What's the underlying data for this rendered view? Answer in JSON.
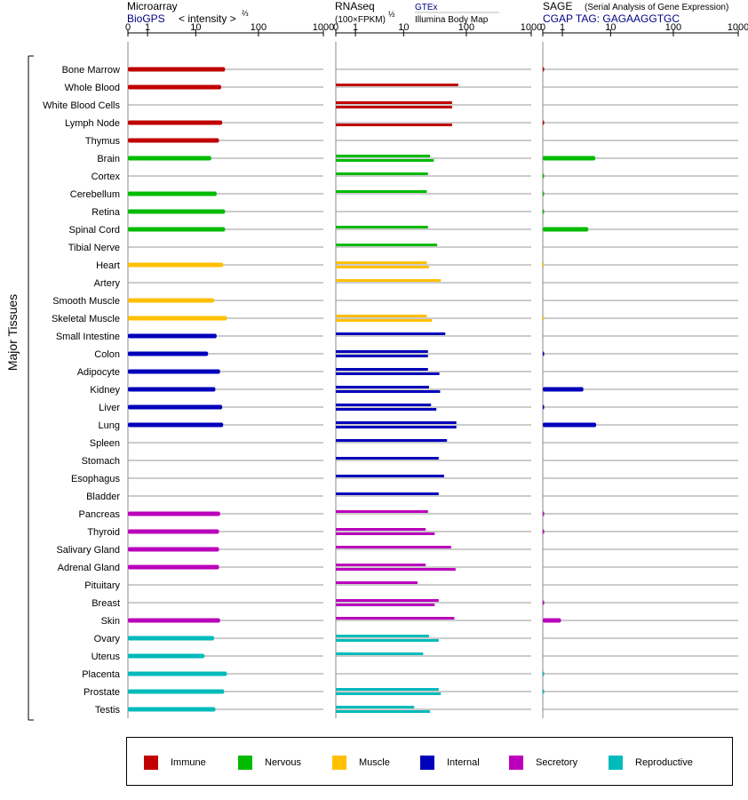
{
  "chart_data": {
    "type": "bar",
    "orientation": "horizontal",
    "axis_title": "Major Tissues",
    "tissues": [
      "Bone Marrow",
      "Whole Blood",
      "White Blood Cells",
      "Lymph Node",
      "Thymus",
      "Brain",
      "Cortex",
      "Cerebellum",
      "Retina",
      "Spinal Cord",
      "Tibial Nerve",
      "Heart",
      "Artery",
      "Smooth Muscle",
      "Skeletal Muscle",
      "Small Intestine",
      "Colon",
      "Adipocyte",
      "Kidney",
      "Liver",
      "Lung",
      "Spleen",
      "Stomach",
      "Esophagus",
      "Bladder",
      "Pancreas",
      "Thyroid",
      "Salivary Gland",
      "Adrenal Gland",
      "Pituitary",
      "Breast",
      "Skin",
      "Ovary",
      "Uterus",
      "Placenta",
      "Prostate",
      "Testis"
    ],
    "tissue_groups": [
      "Immune",
      "Immune",
      "Immune",
      "Immune",
      "Immune",
      "Nervous",
      "Nervous",
      "Nervous",
      "Nervous",
      "Nervous",
      "Nervous",
      "Muscle",
      "Muscle",
      "Muscle",
      "Muscle",
      "Internal",
      "Internal",
      "Internal",
      "Internal",
      "Internal",
      "Internal",
      "Internal",
      "Internal",
      "Internal",
      "Internal",
      "Secretory",
      "Secretory",
      "Secretory",
      "Secretory",
      "Secretory",
      "Secretory",
      "Secretory",
      "Reproductive",
      "Reproductive",
      "Reproductive",
      "Reproductive",
      "Reproductive"
    ],
    "group_colors": {
      "Immune": "#c00000",
      "Nervous": "#00bb00",
      "Muscle": "#ffc000",
      "Internal": "#0000bb",
      "Secretory": "#bb00bb",
      "Reproductive": "#00bbbb"
    },
    "legend": [
      "Immune",
      "Nervous",
      "Muscle",
      "Internal",
      "Secretory",
      "Reproductive"
    ],
    "panels": [
      {
        "title": "Microarray",
        "subtitle": "BioGPS",
        "subtitle_color": "#000080",
        "scale_note": "< intensity >",
        "scale_exp": "⅔",
        "ticks": [
          0,
          1,
          10,
          100,
          1000
        ],
        "tick_labels": [
          "0",
          "1",
          "10",
          "100",
          "1000"
        ],
        "series": [
          {
            "name": "BioGPS",
            "values": [
              30,
              26,
              null,
              27,
              24,
              18,
              null,
              22,
              30,
              30,
              null,
              28,
              null,
              20,
              32,
              22,
              16,
              25,
              21,
              27,
              28,
              null,
              null,
              null,
              null,
              25,
              24,
              24,
              24,
              null,
              null,
              25,
              20,
              14,
              32,
              29,
              21
            ]
          }
        ]
      },
      {
        "title": "RNAseq",
        "subtitle": "(100×FPKM)",
        "subtitle_color": "#000000",
        "scale_exp": "½",
        "source_1": "GTEx",
        "source_1_color": "#000080",
        "source_2": "Illumina Body Map",
        "source_2_color": "#000000",
        "ticks": [
          0,
          1,
          10,
          100,
          1000
        ],
        "tick_labels": [
          "0",
          "1",
          "10",
          "100",
          "1000"
        ],
        "series": [
          {
            "name": "GTEx",
            "values": [
              null,
              75,
              60,
              null,
              null,
              27,
              25,
              24,
              null,
              25,
              35,
              24,
              40,
              null,
              24,
              47,
              25,
              25,
              26,
              28,
              70,
              50,
              37,
              45,
              37,
              25,
              23,
              58,
              23,
              17,
              37,
              65,
              26,
              21,
              null,
              37,
              15
            ]
          },
          {
            "name": "Illumina Body Map",
            "values": [
              null,
              null,
              60,
              60,
              null,
              31,
              null,
              null,
              null,
              null,
              null,
              26,
              null,
              null,
              29,
              null,
              25,
              38,
              39,
              34,
              70,
              null,
              null,
              null,
              null,
              null,
              32,
              null,
              68,
              null,
              32,
              null,
              37,
              null,
              null,
              40,
              27
            ]
          }
        ]
      },
      {
        "title": "SAGE",
        "subtitle": "CGAP TAG: GAGAAGGTGC",
        "subtitle_color": "#000080",
        "title_note": "(Serial Analysis of Gene Expression)",
        "ticks": [
          0,
          1,
          10,
          100,
          1000
        ],
        "tick_labels": [
          "0",
          "1",
          "10",
          "100",
          "1000"
        ],
        "series": [
          {
            "name": "SAGE",
            "values": [
              0.05,
              null,
              null,
              0.05,
              null,
              5.4,
              0.03,
              0.03,
              0.03,
              4,
              null,
              0.02,
              null,
              null,
              0.02,
              null,
              0.05,
              null,
              3.2,
              0.05,
              5.6,
              null,
              null,
              null,
              null,
              0.05,
              0.05,
              null,
              null,
              null,
              0.05,
              0.9,
              null,
              null,
              0.05,
              0.05,
              null
            ]
          }
        ]
      }
    ]
  }
}
